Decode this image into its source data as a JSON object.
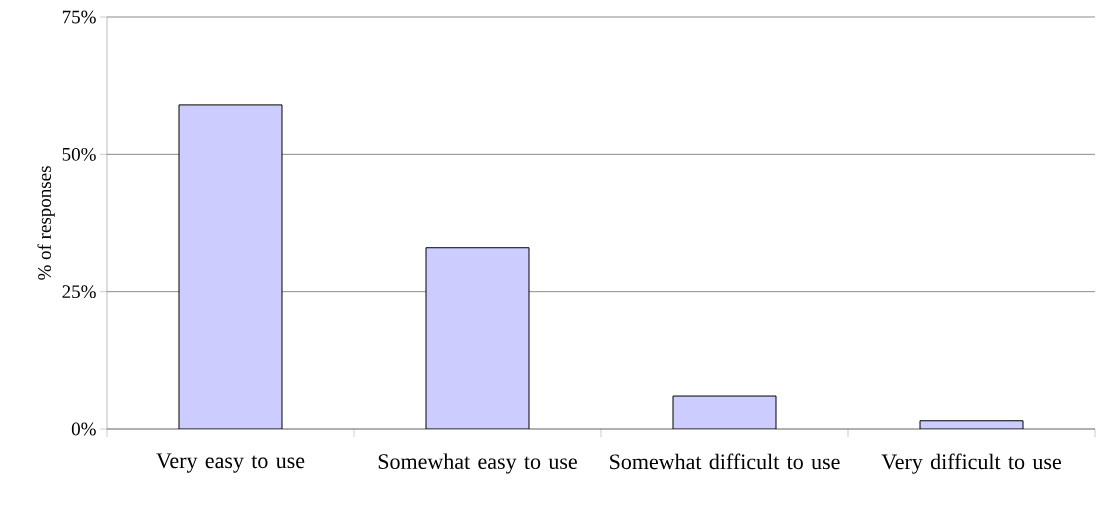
{
  "chart_data": {
    "type": "bar",
    "ylabel": "% of responses",
    "categories": [
      "Very easy to use",
      "Somewhat easy to use",
      "Somewhat difficult to use",
      "Very difficult to use"
    ],
    "values": [
      59,
      33,
      6,
      1.5
    ],
    "color": "#ccccff",
    "ylim": [
      0,
      75
    ],
    "yticks": [
      {
        "value": 0,
        "label": "0%"
      },
      {
        "value": 25,
        "label": "25%"
      },
      {
        "value": 50,
        "label": "50%"
      },
      {
        "value": 75,
        "label": "75%"
      }
    ],
    "grid": "y"
  }
}
